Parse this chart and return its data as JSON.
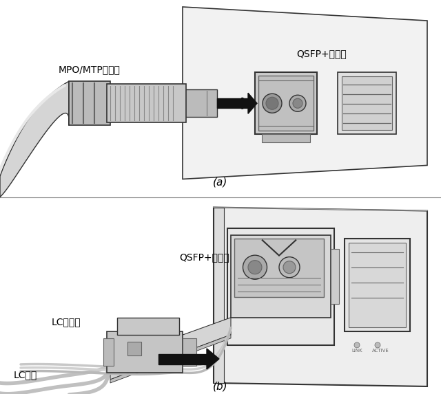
{
  "bg_color": "#ffffff",
  "panel_a_label": "(a)",
  "panel_b_label": "(b)",
  "label_mpo": "MPO/MTP连接器",
  "label_qsfp_a": "QSFP+光模块",
  "label_qsfp_b": "QSFP+光模块",
  "label_lc": "LC连接器",
  "label_lc_jumper": "LC跳线",
  "text_color": "#000000",
  "edge_color": "#333333",
  "light_gray": "#d8d8d8",
  "mid_gray": "#b0b0b0",
  "dark_gray": "#666666",
  "panel_face": "#f2f2f2"
}
